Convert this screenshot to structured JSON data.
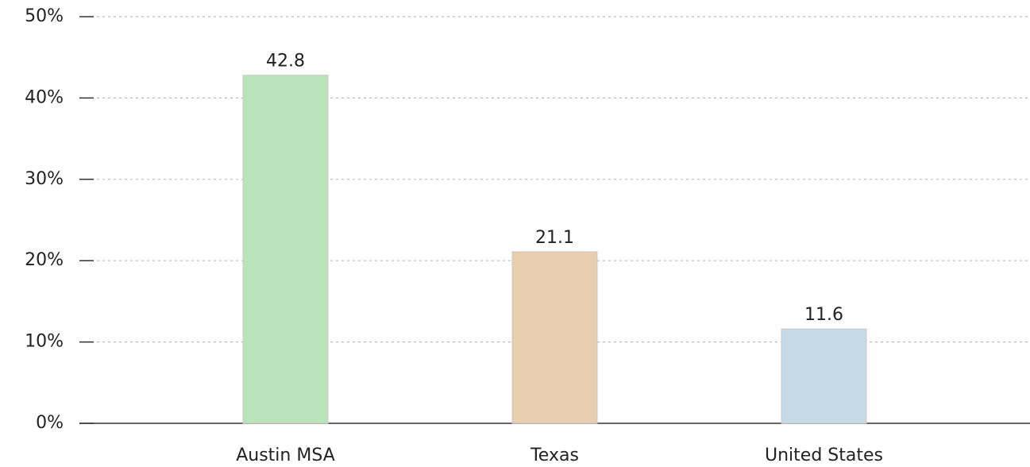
{
  "chart_data": {
    "type": "bar",
    "categories": [
      "Austin MSA",
      "Texas",
      "United States"
    ],
    "values": [
      42.8,
      21.1,
      11.6
    ],
    "colors": [
      "#b9e3bb",
      "#e8cdae",
      "#c6dae6"
    ],
    "ylim": [
      0,
      50
    ],
    "yticks": [
      {
        "value": 0,
        "label": "0%"
      },
      {
        "value": 10,
        "label": "10%"
      },
      {
        "value": 20,
        "label": "20%"
      },
      {
        "value": 30,
        "label": "30%"
      },
      {
        "value": 40,
        "label": "40%"
      },
      {
        "value": 50,
        "label": "50%"
      }
    ],
    "grid": true
  }
}
